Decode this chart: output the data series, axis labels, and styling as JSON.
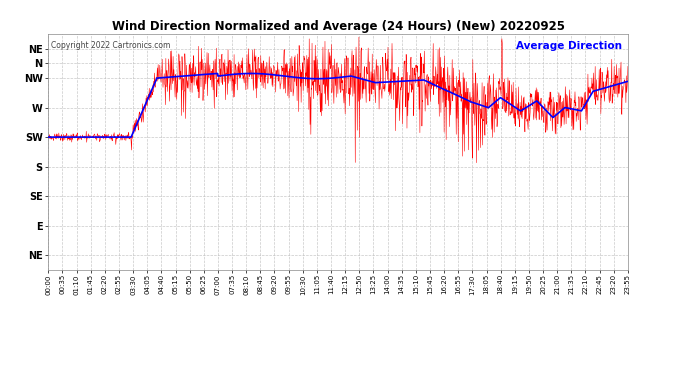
{
  "title": "Wind Direction Normalized and Average (24 Hours) (New) 20220925",
  "copyright": "Copyright 2022 Cartronics.com",
  "legend_label": "Average Direction",
  "ytick_labels": [
    "NE",
    "N",
    "NW",
    "W",
    "SW",
    "S",
    "SE",
    "E",
    "NE"
  ],
  "ytick_values": [
    360,
    337.5,
    315,
    270,
    225,
    180,
    135,
    90,
    45
  ],
  "ylim": [
    22.5,
    382.5
  ],
  "background_color": "#ffffff",
  "grid_color": "#bbbbbb",
  "red_color": "#ff0000",
  "blue_color": "#0000ff",
  "title_color": "#000000",
  "xtick_interval_minutes": 35,
  "total_minutes": 1435,
  "figwidth": 6.9,
  "figheight": 3.75,
  "dpi": 100
}
